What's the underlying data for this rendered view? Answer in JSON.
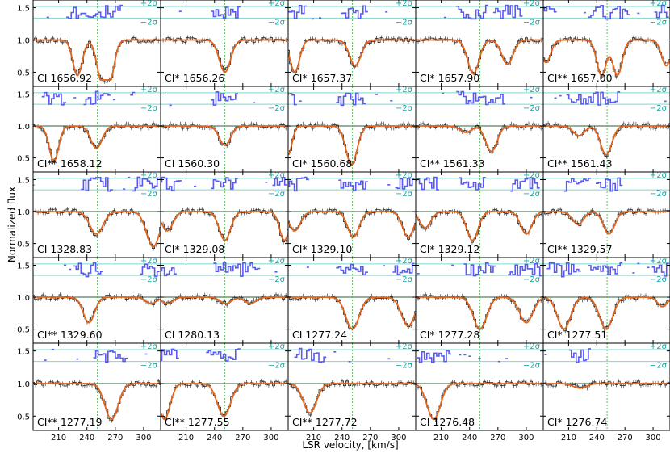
{
  "chart_data": {
    "type": "line",
    "ylabel": "Normalized flux",
    "xlabel": "LSR velocity, [km/s]",
    "xlim": [
      183,
      318
    ],
    "ylim": [
      0.28,
      1.62
    ],
    "x_ticks": [
      "210",
      "240",
      "270",
      "300"
    ],
    "x_tick_values": [
      210,
      240,
      270,
      300
    ],
    "y_ticks": [
      "0.5",
      "1.0",
      "1.5"
    ],
    "y_tick_values": [
      0.5,
      1.0,
      1.5
    ],
    "reference_velocity": 251,
    "residual_labels": {
      "upper": "+2σ",
      "lower": "−2σ"
    },
    "residual_levels": {
      "upper": 1.52,
      "center": 1.43,
      "lower": 1.34
    },
    "colors": {
      "data": "#222222",
      "model": "#e2641a",
      "continuum": "#2e5e3a",
      "residuals": "#5a5af0",
      "sigma": "#7dd8cf",
      "reference": "#5fbf5f"
    },
    "panels": [
      {
        "label": "CI 1656.92",
        "comps": [
          [
            230,
            0.55,
            5
          ],
          [
            255,
            0.55,
            5
          ],
          [
            264,
            0.6,
            5
          ]
        ]
      },
      {
        "label": "CI* 1656.26",
        "comps": [
          [
            251,
            0.5,
            6
          ]
        ]
      },
      {
        "label": "CI* 1657.37",
        "comps": [
          [
            190,
            0.5,
            5
          ],
          [
            254,
            0.4,
            6
          ]
        ]
      },
      {
        "label": "CI* 1657.90",
        "comps": [
          [
            244,
            0.52,
            6
          ],
          [
            280,
            0.38,
            6
          ]
        ]
      },
      {
        "label": "CI** 1657.00",
        "comps": [
          [
            186,
            0.35,
            5
          ],
          [
            245,
            0.55,
            5
          ],
          [
            262,
            0.55,
            5
          ],
          [
            314,
            0.4,
            5
          ]
        ]
      },
      {
        "label": "CI** 1658.12",
        "comps": [
          [
            205,
            0.55,
            5
          ],
          [
            250,
            0.35,
            6
          ]
        ]
      },
      {
        "label": "CI 1560.30",
        "comps": [
          [
            251,
            0.3,
            6
          ]
        ]
      },
      {
        "label": "CI* 1560.68",
        "comps": [
          [
            183,
            0.45,
            4
          ],
          [
            250,
            0.6,
            6
          ]
        ]
      },
      {
        "label": "CI** 1561.33",
        "comps": [
          [
            236,
            0.1,
            6
          ],
          [
            263,
            0.4,
            6
          ]
        ]
      },
      {
        "label": "CI** 1561.43",
        "comps": [
          [
            221,
            0.15,
            6
          ],
          [
            250,
            0.45,
            6
          ]
        ]
      },
      {
        "label": "CI 1328.83",
        "comps": [
          [
            250,
            0.35,
            7
          ],
          [
            310,
            0.55,
            7
          ]
        ]
      },
      {
        "label": "CI* 1329.08",
        "comps": [
          [
            190,
            0.3,
            6
          ],
          [
            251,
            0.45,
            6
          ],
          [
            314,
            0.45,
            5
          ]
        ]
      },
      {
        "label": "CI* 1329.10",
        "comps": [
          [
            190,
            0.3,
            6
          ],
          [
            252,
            0.4,
            6
          ],
          [
            310,
            0.4,
            6
          ]
        ]
      },
      {
        "label": "CI* 1329.12",
        "comps": [
          [
            193,
            0.25,
            6
          ],
          [
            243,
            0.45,
            6
          ],
          [
            300,
            0.35,
            6
          ]
        ]
      },
      {
        "label": "CI** 1329.57",
        "comps": [
          [
            220,
            0.2,
            6
          ],
          [
            253,
            0.35,
            6
          ]
        ]
      },
      {
        "label": "CI** 1329.60",
        "comps": [
          [
            242,
            0.4,
            6
          ],
          [
            308,
            0.1,
            6
          ]
        ]
      },
      {
        "label": "CI 1280.13",
        "comps": [
          [
            190,
            0.1,
            6
          ],
          [
            252,
            0.1,
            6
          ],
          [
            278,
            0.1,
            6
          ]
        ]
      },
      {
        "label": "CI 1277.24",
        "comps": [
          [
            251,
            0.5,
            7
          ],
          [
            310,
            0.45,
            7
          ]
        ]
      },
      {
        "label": "CI* 1277.28",
        "comps": [
          [
            251,
            0.5,
            7
          ],
          [
            300,
            0.4,
            7
          ]
        ]
      },
      {
        "label": "CI* 1277.51",
        "comps": [
          [
            205,
            0.5,
            7
          ],
          [
            250,
            0.5,
            7
          ],
          [
            310,
            0.15,
            5
          ]
        ]
      },
      {
        "label": "CI** 1277.19",
        "comps": [
          [
            266,
            0.55,
            7
          ]
        ]
      },
      {
        "label": "CI** 1277.55",
        "comps": [
          [
            187,
            0.55,
            6
          ],
          [
            250,
            0.5,
            7
          ]
        ]
      },
      {
        "label": "CI** 1277.72",
        "comps": [
          [
            206,
            0.45,
            7
          ]
        ]
      },
      {
        "label": "CI 1276.48",
        "comps": [
          [
            202,
            0.55,
            7
          ]
        ]
      },
      {
        "label": "CI* 1276.74",
        "comps": [
          [
            222,
            0.07,
            7
          ]
        ]
      }
    ]
  }
}
